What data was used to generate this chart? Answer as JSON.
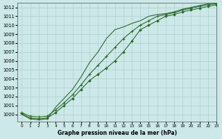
{
  "title": "Graphe pression niveau de la mer (hPa)",
  "bg_color": "#cce8e8",
  "grid_color": "#b0d0d0",
  "line_color": "#2d6a2d",
  "xlim": [
    -0.5,
    23
  ],
  "ylim": [
    999.2,
    1012.5
  ],
  "yticks": [
    1000,
    1001,
    1002,
    1003,
    1004,
    1005,
    1006,
    1007,
    1008,
    1009,
    1010,
    1011,
    1012
  ],
  "xticks": [
    0,
    1,
    2,
    3,
    4,
    5,
    6,
    7,
    8,
    9,
    10,
    11,
    12,
    13,
    14,
    15,
    16,
    17,
    18,
    19,
    20,
    21,
    22,
    23
  ],
  "line1_x": [
    0,
    1,
    2,
    3,
    4,
    5,
    6,
    7,
    8,
    9,
    10,
    11,
    12,
    13,
    14,
    15,
    16,
    17,
    18,
    19,
    20,
    21,
    22,
    23
  ],
  "line1_y": [
    1000.1,
    999.6,
    999.5,
    999.6,
    1000.2,
    1001.0,
    1001.8,
    1002.8,
    1003.8,
    1004.5,
    1005.2,
    1006.0,
    1007.0,
    1008.2,
    1009.5,
    1010.0,
    1010.5,
    1011.0,
    1011.2,
    1011.5,
    1011.7,
    1011.9,
    1012.1,
    1012.3
  ],
  "line2_x": [
    0,
    1,
    2,
    3,
    4,
    5,
    6,
    7,
    8,
    9,
    10,
    11,
    12,
    13,
    14,
    15,
    16,
    17,
    18,
    19,
    20,
    21,
    22,
    23
  ],
  "line2_y": [
    1000.2,
    999.8,
    999.7,
    999.8,
    1000.5,
    1001.3,
    1002.2,
    1003.3,
    1004.5,
    1005.5,
    1006.5,
    1007.5,
    1008.5,
    1009.3,
    1010.0,
    1010.5,
    1011.0,
    1011.2,
    1011.4,
    1011.7,
    1011.9,
    1012.1,
    1012.3,
    1012.4
  ],
  "line3_x": [
    0,
    1,
    2,
    3,
    4,
    5,
    6,
    7,
    8,
    9,
    10,
    11,
    12,
    13,
    14,
    15,
    16,
    17,
    18,
    19,
    20,
    21,
    22,
    23
  ],
  "line3_y": [
    1000.0,
    999.5,
    999.4,
    999.5,
    1000.8,
    1001.8,
    1002.8,
    1004.2,
    1005.8,
    1007.0,
    1008.5,
    1009.5,
    1009.8,
    1010.2,
    1010.5,
    1011.0,
    1011.2,
    1011.3,
    1011.5,
    1011.8,
    1012.0,
    1012.2,
    1012.4,
    1012.5
  ]
}
